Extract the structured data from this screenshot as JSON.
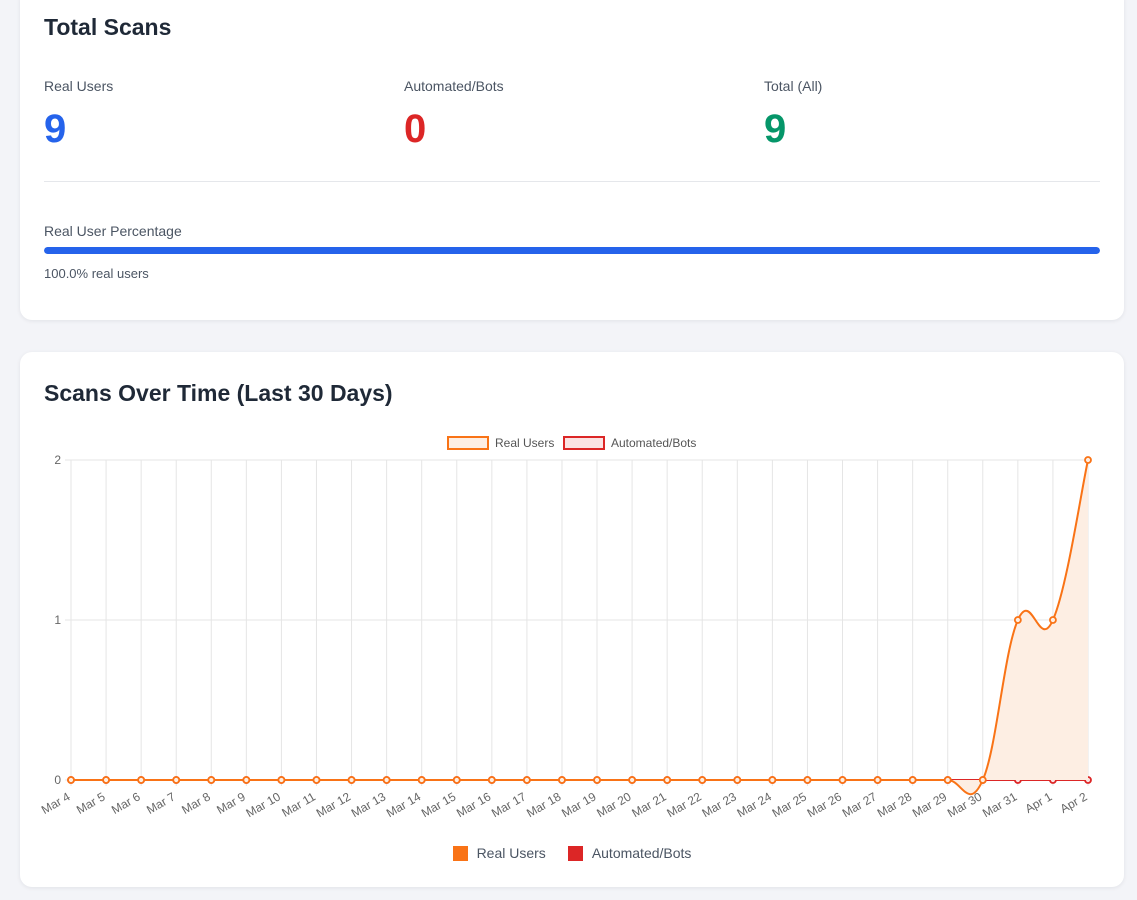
{
  "total_scans": {
    "title": "Total Scans",
    "stats": [
      {
        "label": "Real Users",
        "value": "9",
        "color": "#2563eb"
      },
      {
        "label": "Automated/Bots",
        "value": "0",
        "color": "#dc2626"
      },
      {
        "label": "Total (All)",
        "value": "9",
        "color": "#059669"
      }
    ],
    "percentage_label": "Real User Percentage",
    "percentage_value": 100.0,
    "percentage_text": "100.0% real users",
    "bar_color": "#2563eb"
  },
  "scans_over_time": {
    "title": "Scans Over Time (Last 30 Days)"
  },
  "chart_data": {
    "type": "line",
    "categories": [
      "Mar 4",
      "Mar 5",
      "Mar 6",
      "Mar 7",
      "Mar 8",
      "Mar 9",
      "Mar 10",
      "Mar 11",
      "Mar 12",
      "Mar 13",
      "Mar 14",
      "Mar 15",
      "Mar 16",
      "Mar 17",
      "Mar 18",
      "Mar 19",
      "Mar 20",
      "Mar 21",
      "Mar 22",
      "Mar 23",
      "Mar 24",
      "Mar 25",
      "Mar 26",
      "Mar 27",
      "Mar 28",
      "Mar 29",
      "Mar 30",
      "Mar 31",
      "Apr 1",
      "Apr 2"
    ],
    "series": [
      {
        "name": "Real Users",
        "color": "#f97316",
        "fill": "#fdeee3",
        "values": [
          0,
          0,
          0,
          0,
          0,
          0,
          0,
          0,
          0,
          0,
          0,
          0,
          0,
          0,
          0,
          0,
          0,
          0,
          0,
          0,
          0,
          0,
          0,
          0,
          0,
          0,
          0,
          1,
          1,
          2
        ]
      },
      {
        "name": "Automated/Bots",
        "color": "#dc2626",
        "fill": "#fbe3e3",
        "values": [
          0,
          0,
          0,
          0,
          0,
          0,
          0,
          0,
          0,
          0,
          0,
          0,
          0,
          0,
          0,
          0,
          0,
          0,
          0,
          0,
          0,
          0,
          0,
          0,
          0,
          0,
          0,
          0,
          0,
          0
        ]
      }
    ],
    "ylim": [
      0,
      2
    ],
    "yticks": [
      "0",
      "1",
      "2"
    ],
    "grid": true,
    "legend_placement": "top-center and bottom-center",
    "xlabel": "",
    "ylabel": ""
  }
}
